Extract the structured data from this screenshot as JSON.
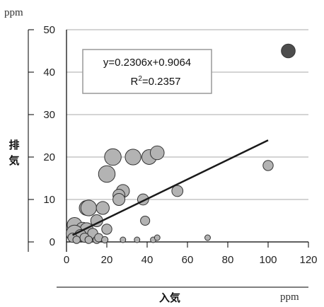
{
  "chart_data": {
    "type": "scatter",
    "y_unit": "ppm",
    "x_unit": "ppm",
    "xlabel": "入気",
    "ylabel": "排気",
    "xlim": [
      0,
      120
    ],
    "ylim": [
      0,
      50
    ],
    "x_ticks": [
      "0",
      "20",
      "40",
      "60",
      "80",
      "100",
      "120"
    ],
    "y_ticks": [
      "0",
      "10",
      "20",
      "30",
      "40",
      "50"
    ],
    "grid": "horizontal",
    "annotation": {
      "equation": "y=0.2306x+0.9064",
      "r2_prefix": "R",
      "r2_sup": "2",
      "r2_suffix": "=0.2357"
    },
    "trendline": {
      "slope": 0.2306,
      "intercept": 0.9064,
      "x_range": [
        3,
        100
      ],
      "color": "#1a1a1a"
    },
    "colors": {
      "point_fill": "#b3b3b3",
      "point_stroke": "#333333",
      "highlight_fill": "#4d4d4d",
      "grid": "#aaaaaa"
    },
    "points": [
      {
        "x": 110,
        "y": 45,
        "size": 1.2,
        "highlight": true
      },
      {
        "x": 23,
        "y": 20,
        "size": 1.5
      },
      {
        "x": 33,
        "y": 20,
        "size": 1.4
      },
      {
        "x": 41,
        "y": 20,
        "size": 1.3
      },
      {
        "x": 45,
        "y": 21,
        "size": 1.2
      },
      {
        "x": 20,
        "y": 16,
        "size": 1.5
      },
      {
        "x": 100,
        "y": 18,
        "size": 0.8
      },
      {
        "x": 28,
        "y": 12,
        "size": 1.1
      },
      {
        "x": 26,
        "y": 11,
        "size": 1.0
      },
      {
        "x": 26,
        "y": 10,
        "size": 1.0
      },
      {
        "x": 55,
        "y": 12,
        "size": 0.9
      },
      {
        "x": 38,
        "y": 10,
        "size": 0.9
      },
      {
        "x": 10,
        "y": 8,
        "size": 1.3
      },
      {
        "x": 11,
        "y": 8,
        "size": 1.4
      },
      {
        "x": 18,
        "y": 8,
        "size": 1.1
      },
      {
        "x": 15,
        "y": 5,
        "size": 1.0
      },
      {
        "x": 39,
        "y": 5,
        "size": 0.7
      },
      {
        "x": 4,
        "y": 4,
        "size": 1.3
      },
      {
        "x": 8,
        "y": 3,
        "size": 1.2
      },
      {
        "x": 10,
        "y": 3,
        "size": 1.1
      },
      {
        "x": 20,
        "y": 3,
        "size": 0.8
      },
      {
        "x": 4,
        "y": 2,
        "size": 1.5
      },
      {
        "x": 7,
        "y": 1.5,
        "size": 1.0
      },
      {
        "x": 13,
        "y": 2,
        "size": 0.8
      },
      {
        "x": 3,
        "y": 1,
        "size": 0.7
      },
      {
        "x": 9,
        "y": 1,
        "size": 0.7
      },
      {
        "x": 5,
        "y": 0.5,
        "size": 0.5
      },
      {
        "x": 11,
        "y": 0.5,
        "size": 0.5
      },
      {
        "x": 15,
        "y": 0.5,
        "size": 0.5
      },
      {
        "x": 16,
        "y": 1,
        "size": 0.6
      },
      {
        "x": 19,
        "y": 0.5,
        "size": 0.4
      },
      {
        "x": 28,
        "y": 0.5,
        "size": 0.3
      },
      {
        "x": 35,
        "y": 0.5,
        "size": 0.3
      },
      {
        "x": 43,
        "y": 0.5,
        "size": 0.3
      },
      {
        "x": 45,
        "y": 1,
        "size": 0.3
      },
      {
        "x": 70,
        "y": 1,
        "size": 0.3
      }
    ]
  }
}
